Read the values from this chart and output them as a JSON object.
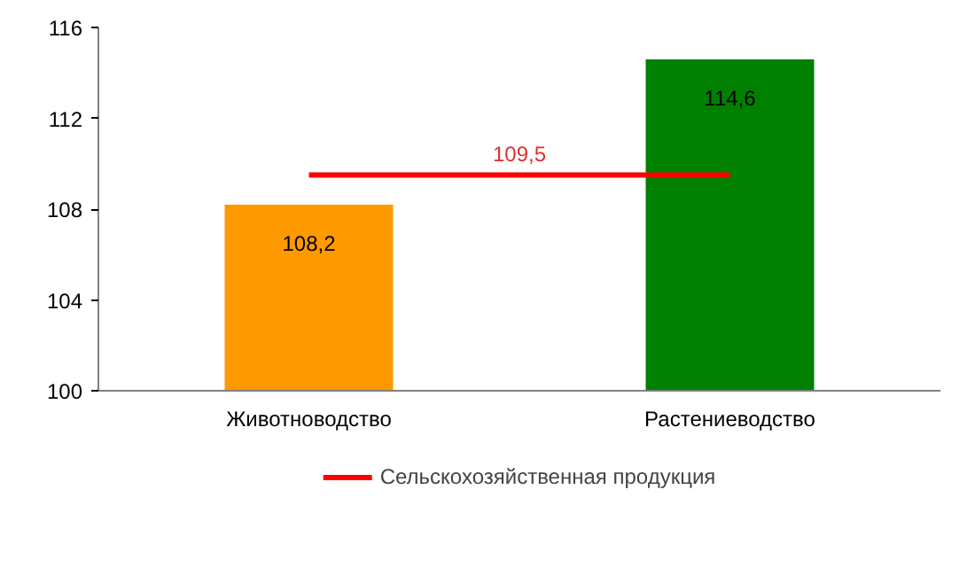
{
  "chart_data": {
    "type": "bar",
    "categories": [
      "Животноводство",
      "Растениеводство"
    ],
    "series": [
      {
        "colors": [
          "#ff9900",
          "#008000"
        ],
        "values": [
          108.2,
          114.6
        ],
        "value_labels": [
          "108,2",
          "114,6"
        ]
      },
      {
        "type": "line",
        "name": "Сельскохозяйственная продукция",
        "color": "#ff0000",
        "values": [
          109.5,
          109.5
        ]
      }
    ],
    "annotations": [
      {
        "text": "109,5",
        "y": 109.5
      }
    ],
    "ylim": [
      100,
      116
    ],
    "yticks": [
      100,
      104,
      108,
      112,
      116
    ],
    "grid": false,
    "legend": "bottom"
  }
}
